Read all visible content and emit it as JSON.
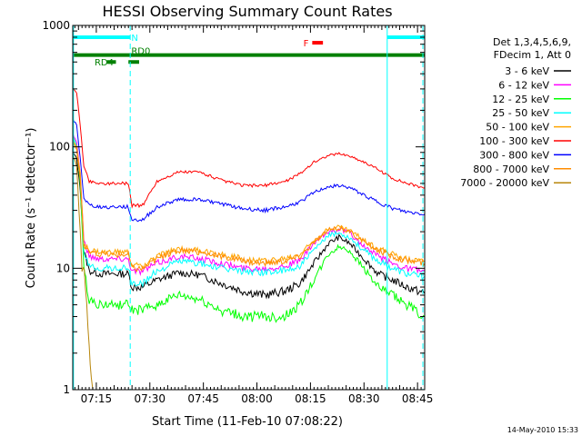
{
  "chart_data": {
    "type": "line",
    "title": "HESSI Observing Summary Count Rates",
    "xlabel": "Start Time (11-Feb-10 07:08:22)",
    "ylabel": "Count Rate (s⁻¹ detector⁻¹)",
    "y_scale": "log",
    "ylim": [
      1,
      1000
    ],
    "xlim_minutes_after_0700": [
      8.4,
      107.0
    ],
    "grid": false,
    "legend_placement": "right",
    "x_ticks": [
      {
        "minute": 15,
        "label": "07:15"
      },
      {
        "minute": 30,
        "label": "07:30"
      },
      {
        "minute": 45,
        "label": "07:45"
      },
      {
        "minute": 60,
        "label": "08:00"
      },
      {
        "minute": 75,
        "label": "08:15"
      },
      {
        "minute": 90,
        "label": "08:30"
      },
      {
        "minute": 105,
        "label": "08:45"
      }
    ],
    "y_ticks": [
      {
        "value": 1,
        "label": "1"
      },
      {
        "value": 10,
        "label": "10"
      },
      {
        "value": 100,
        "label": "100"
      },
      {
        "value": 1000,
        "label": "1000"
      }
    ],
    "legend_header": [
      "Det 1,3,4,5,6,9,",
      "FDecim 1, Att 0"
    ],
    "series": [
      {
        "name": "3 - 6 keV",
        "color": "#000000",
        "points": [
          [
            8.4,
            90
          ],
          [
            9.5,
            80
          ],
          [
            10.5,
            45
          ],
          [
            11.5,
            14
          ],
          [
            13,
            9.5
          ],
          [
            16,
            9
          ],
          [
            20,
            9
          ],
          [
            24,
            9
          ],
          [
            25,
            7
          ],
          [
            28,
            7
          ],
          [
            32,
            8
          ],
          [
            38,
            9.2
          ],
          [
            44,
            8.8
          ],
          [
            50,
            7.5
          ],
          [
            56,
            6.5
          ],
          [
            62,
            6
          ],
          [
            68,
            6.5
          ],
          [
            72,
            7.5
          ],
          [
            76,
            11
          ],
          [
            80,
            16
          ],
          [
            83,
            18
          ],
          [
            86,
            16
          ],
          [
            90,
            12
          ],
          [
            94,
            9
          ],
          [
            98,
            8
          ],
          [
            102,
            7
          ],
          [
            107,
            6.2
          ]
        ]
      },
      {
        "name": "6 - 12 keV",
        "color": "#ff00ff",
        "points": [
          [
            8.4,
            130
          ],
          [
            9.5,
            110
          ],
          [
            10.5,
            60
          ],
          [
            11.5,
            17
          ],
          [
            13,
            12.5
          ],
          [
            16,
            12
          ],
          [
            20,
            12
          ],
          [
            24,
            12
          ],
          [
            25,
            9.5
          ],
          [
            28,
            9.5
          ],
          [
            32,
            11
          ],
          [
            38,
            12.5
          ],
          [
            44,
            12
          ],
          [
            50,
            11
          ],
          [
            56,
            10
          ],
          [
            62,
            10
          ],
          [
            68,
            10.5
          ],
          [
            72,
            11.5
          ],
          [
            76,
            16
          ],
          [
            80,
            20
          ],
          [
            83,
            21
          ],
          [
            86,
            19.5
          ],
          [
            90,
            15
          ],
          [
            94,
            12.5
          ],
          [
            98,
            11
          ],
          [
            102,
            10
          ],
          [
            107,
            9.5
          ]
        ]
      },
      {
        "name": "12 - 25 keV",
        "color": "#00ff00",
        "points": [
          [
            8.4,
            125
          ],
          [
            9.5,
            100
          ],
          [
            10.5,
            50
          ],
          [
            11.5,
            10
          ],
          [
            13,
            5.5
          ],
          [
            16,
            5
          ],
          [
            20,
            5
          ],
          [
            24,
            5
          ],
          [
            25,
            4.5
          ],
          [
            28,
            4.5
          ],
          [
            32,
            5
          ],
          [
            38,
            6
          ],
          [
            44,
            5.5
          ],
          [
            50,
            4.5
          ],
          [
            56,
            4
          ],
          [
            62,
            4
          ],
          [
            68,
            4
          ],
          [
            72,
            5
          ],
          [
            76,
            8
          ],
          [
            80,
            13
          ],
          [
            83,
            15
          ],
          [
            86,
            14
          ],
          [
            90,
            10
          ],
          [
            94,
            7
          ],
          [
            98,
            6
          ],
          [
            102,
            5
          ],
          [
            107,
            4
          ]
        ]
      },
      {
        "name": "25 - 50 keV",
        "color": "#00ffff",
        "points": [
          [
            8.4,
            120
          ],
          [
            9.5,
            100
          ],
          [
            10.5,
            55
          ],
          [
            11.5,
            13
          ],
          [
            13,
            10.5
          ],
          [
            16,
            10
          ],
          [
            20,
            10
          ],
          [
            24,
            10
          ],
          [
            25,
            7.5
          ],
          [
            28,
            7.5
          ],
          [
            32,
            9.5
          ],
          [
            38,
            11.5
          ],
          [
            44,
            11
          ],
          [
            50,
            10
          ],
          [
            56,
            9.5
          ],
          [
            62,
            9.3
          ],
          [
            68,
            9.5
          ],
          [
            72,
            10.5
          ],
          [
            76,
            14
          ],
          [
            80,
            18.5
          ],
          [
            83,
            19.5
          ],
          [
            86,
            18
          ],
          [
            90,
            14
          ],
          [
            94,
            11.5
          ],
          [
            98,
            10
          ],
          [
            102,
            9
          ],
          [
            107,
            8.5
          ]
        ]
      },
      {
        "name": "50 - 100 keV",
        "color": "#ffa500",
        "points": [
          [
            8.4,
            115
          ],
          [
            9.5,
            100
          ],
          [
            10.5,
            60
          ],
          [
            11.5,
            16
          ],
          [
            13,
            14
          ],
          [
            16,
            13.5
          ],
          [
            20,
            13.5
          ],
          [
            24,
            13.5
          ],
          [
            25,
            10.5
          ],
          [
            28,
            10.5
          ],
          [
            32,
            12.5
          ],
          [
            38,
            14.5
          ],
          [
            44,
            14
          ],
          [
            50,
            13
          ],
          [
            56,
            12
          ],
          [
            62,
            11.5
          ],
          [
            68,
            12
          ],
          [
            72,
            13
          ],
          [
            76,
            17
          ],
          [
            80,
            21
          ],
          [
            83,
            22
          ],
          [
            86,
            20.5
          ],
          [
            90,
            17
          ],
          [
            94,
            14.5
          ],
          [
            98,
            13
          ],
          [
            102,
            12
          ],
          [
            107,
            11.5
          ]
        ]
      },
      {
        "name": "100 - 300 keV",
        "color": "#ff0000",
        "points": [
          [
            8.4,
            300
          ],
          [
            9.5,
            280
          ],
          [
            10.5,
            150
          ],
          [
            11.5,
            70
          ],
          [
            13,
            52
          ],
          [
            16,
            50
          ],
          [
            20,
            50
          ],
          [
            24,
            50
          ],
          [
            25,
            33
          ],
          [
            28,
            33
          ],
          [
            32,
            52
          ],
          [
            38,
            62
          ],
          [
            44,
            62
          ],
          [
            50,
            53
          ],
          [
            56,
            48
          ],
          [
            62,
            48
          ],
          [
            68,
            52
          ],
          [
            72,
            60
          ],
          [
            76,
            75
          ],
          [
            80,
            85
          ],
          [
            83,
            88
          ],
          [
            86,
            84
          ],
          [
            90,
            75
          ],
          [
            94,
            65
          ],
          [
            98,
            55
          ],
          [
            102,
            50
          ],
          [
            107,
            46
          ]
        ]
      },
      {
        "name": "300 - 800 keV",
        "color": "#0000ff",
        "points": [
          [
            8.4,
            170
          ],
          [
            9.5,
            150
          ],
          [
            10.5,
            80
          ],
          [
            11.5,
            38
          ],
          [
            13,
            33
          ],
          [
            16,
            32
          ],
          [
            20,
            32
          ],
          [
            24,
            32
          ],
          [
            25,
            25
          ],
          [
            28,
            25
          ],
          [
            32,
            32
          ],
          [
            38,
            37
          ],
          [
            44,
            37
          ],
          [
            50,
            34
          ],
          [
            56,
            31
          ],
          [
            62,
            30
          ],
          [
            68,
            32
          ],
          [
            72,
            35
          ],
          [
            76,
            42
          ],
          [
            80,
            47
          ],
          [
            83,
            48
          ],
          [
            86,
            46
          ],
          [
            90,
            40
          ],
          [
            94,
            35
          ],
          [
            98,
            31
          ],
          [
            102,
            29
          ],
          [
            107,
            28
          ]
        ]
      },
      {
        "name": "800 - 7000 keV",
        "color": "#ff8c00",
        "points": [
          [
            8.4,
            110
          ],
          [
            9.5,
            95
          ],
          [
            10.5,
            55
          ],
          [
            11.5,
            15
          ],
          [
            13,
            13.5
          ],
          [
            16,
            13
          ],
          [
            20,
            13
          ],
          [
            24,
            13
          ],
          [
            25,
            10
          ],
          [
            28,
            10
          ],
          [
            32,
            12
          ],
          [
            38,
            14
          ],
          [
            44,
            13.5
          ],
          [
            50,
            12.5
          ],
          [
            56,
            11.5
          ],
          [
            62,
            11
          ],
          [
            68,
            11.5
          ],
          [
            72,
            12.5
          ],
          [
            76,
            16.5
          ],
          [
            80,
            20.5
          ],
          [
            83,
            21.5
          ],
          [
            86,
            20
          ],
          [
            90,
            16.5
          ],
          [
            94,
            14
          ],
          [
            98,
            12.5
          ],
          [
            102,
            11.5
          ],
          [
            107,
            11
          ]
        ]
      },
      {
        "name": "7000 - 20000 keV",
        "color": "#b8860b",
        "points": [
          [
            8.4,
            85
          ],
          [
            9.5,
            70
          ],
          [
            10.5,
            20
          ],
          [
            11,
            9.5
          ],
          [
            11.6,
            10
          ],
          [
            12.3,
            5
          ],
          [
            13,
            2.5
          ],
          [
            13.6,
            1.3
          ],
          [
            14,
            1
          ]
        ]
      }
    ],
    "overlay_bars": [
      {
        "label": "N",
        "color": "#00ffff",
        "y": 800,
        "segments": [
          [
            8.4,
            24.5
          ],
          [
            96.5,
            107
          ]
        ]
      },
      {
        "label": "",
        "color": "#008000",
        "y": 570,
        "segments": [
          [
            8.4,
            107
          ]
        ]
      },
      {
        "label": "RD4",
        "color": "#008000",
        "y": 500,
        "segments": [
          [
            18,
            20.5
          ],
          [
            24,
            27
          ]
        ]
      },
      {
        "label": "RD0",
        "color": "#008000",
        "y": 570,
        "segments": []
      },
      {
        "label": "F",
        "color": "#ff0000",
        "y": 720,
        "segments": [
          [
            75.5,
            78.5
          ]
        ]
      }
    ],
    "vertical_markers": [
      {
        "minute": 8.6,
        "color": "#00ffff",
        "style": "solid"
      },
      {
        "minute": 24.5,
        "color": "#00ffff",
        "style": "dashed"
      },
      {
        "minute": 96.5,
        "color": "#00ffff",
        "style": "solid"
      },
      {
        "minute": 106.5,
        "color": "#00ffff",
        "style": "dashed"
      }
    ],
    "footer_date": "14-May-2010 15:33"
  }
}
